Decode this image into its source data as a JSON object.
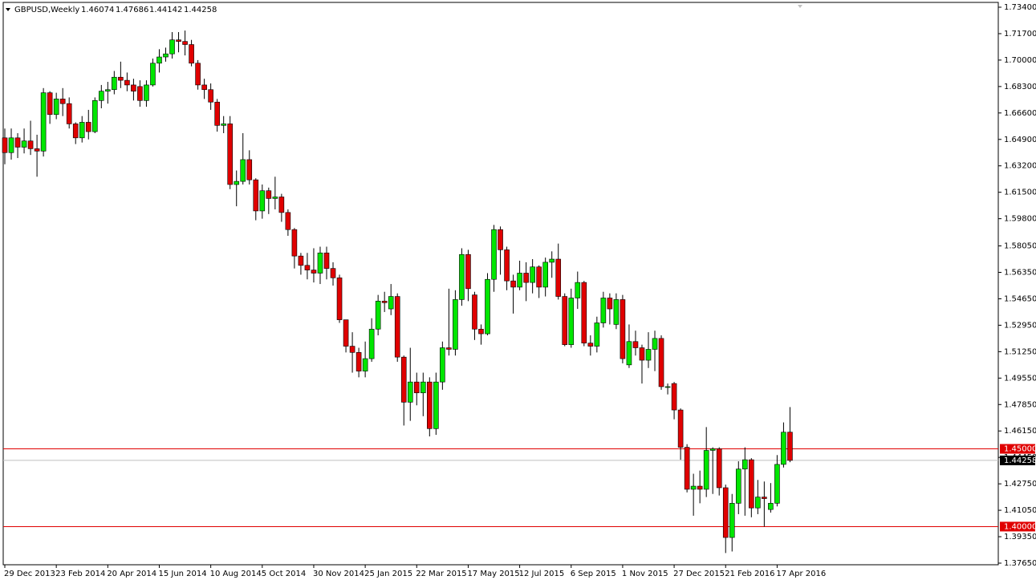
{
  "chart_data": {
    "type": "candlestick",
    "title": "GBPUSD,Weekly",
    "up_color": "#00e600",
    "down_color": "#e00000",
    "categories": [
      "29 Dec 2013",
      null,
      null,
      null,
      null,
      null,
      null,
      null,
      "23 Feb 2014",
      null,
      null,
      null,
      null,
      null,
      null,
      null,
      "20 Apr 2014",
      null,
      null,
      null,
      null,
      null,
      null,
      null,
      "15 Jun 2014",
      null,
      null,
      null,
      null,
      null,
      null,
      null,
      "10 Aug 2014",
      null,
      null,
      null,
      null,
      null,
      null,
      null,
      "5 Oct 2014",
      null,
      null,
      null,
      null,
      null,
      null,
      null,
      "30 Nov 2014",
      null,
      null,
      null,
      null,
      null,
      null,
      null,
      "25 Jan 2015",
      null,
      null,
      null,
      null,
      null,
      null,
      null,
      "22 Mar 2015",
      null,
      null,
      null,
      null,
      null,
      null,
      null,
      "17 May 2015",
      null,
      null,
      null,
      null,
      null,
      null,
      null,
      "12 Jul 2015",
      null,
      null,
      null,
      null,
      null,
      null,
      null,
      "6 Sep 2015",
      null,
      null,
      null,
      null,
      null,
      null,
      null,
      "1 Nov 2015",
      null,
      null,
      null,
      null,
      null,
      null,
      null,
      "27 Dec 2015",
      null,
      null,
      null,
      null,
      null,
      null,
      null,
      "21 Feb 2016",
      null,
      null,
      null,
      null,
      null,
      null,
      null,
      "17 Apr 2016",
      null,
      null
    ],
    "open": [
      1.65,
      1.6405,
      1.65,
      1.644,
      1.648,
      1.643,
      1.6415,
      1.679,
      1.665,
      1.675,
      1.672,
      1.659,
      1.65,
      1.66,
      1.654,
      1.674,
      1.68,
      1.681,
      1.689,
      1.687,
      1.684,
      1.683,
      1.674,
      1.684,
      1.698,
      1.702,
      1.704,
      1.713,
      1.712,
      1.71,
      1.698,
      1.684,
      1.681,
      1.673,
      1.658,
      1.659,
      1.62,
      1.622,
      1.636,
      1.623,
      1.603,
      1.616,
      1.611,
      1.612,
      1.602,
      1.591,
      1.574,
      1.568,
      1.565,
      1.563,
      1.576,
      1.566,
      1.56,
      1.533,
      1.516,
      1.512,
      1.5,
      1.508,
      1.527,
      1.545,
      1.54,
      1.548,
      1.509,
      1.48,
      1.493,
      1.486,
      1.493,
      1.463,
      1.493,
      1.515,
      1.514,
      1.546,
      1.575,
      1.549,
      1.527,
      1.524,
      1.559,
      1.591,
      1.578,
      1.558,
      1.554,
      1.563,
      1.557,
      1.567,
      1.554,
      1.57,
      1.572,
      1.548,
      1.517,
      1.547,
      1.557,
      1.518,
      1.516,
      1.531,
      1.547,
      1.53,
      1.546,
      1.504,
      1.519,
      1.515,
      1.507,
      1.514,
      1.521,
      1.49,
      1.492,
      1.475,
      1.451,
      1.424,
      1.426,
      1.424,
      1.449,
      1.45,
      1.425,
      1.393,
      1.415,
      1.437,
      1.443,
      1.412,
      1.419,
      1.411,
      1.415,
      1.44,
      1.46074
    ],
    "high": [
      1.656,
      1.656,
      1.653,
      1.656,
      1.661,
      1.652,
      1.682,
      1.68,
      1.679,
      1.682,
      1.676,
      1.66,
      1.664,
      1.668,
      1.676,
      1.684,
      1.686,
      1.693,
      1.699,
      1.692,
      1.688,
      1.687,
      1.687,
      1.701,
      1.707,
      1.708,
      1.718,
      1.718,
      1.719,
      1.713,
      1.7,
      1.688,
      1.685,
      1.675,
      1.664,
      1.664,
      1.629,
      1.653,
      1.642,
      1.624,
      1.62,
      1.618,
      1.625,
      1.614,
      1.604,
      1.592,
      1.576,
      1.576,
      1.579,
      1.58,
      1.58,
      1.57,
      1.562,
      1.533,
      1.525,
      1.515,
      1.519,
      1.534,
      1.549,
      1.551,
      1.556,
      1.55,
      1.51,
      1.515,
      1.499,
      1.499,
      1.496,
      1.499,
      1.519,
      1.553,
      1.552,
      1.579,
      1.578,
      1.551,
      1.53,
      1.563,
      1.594,
      1.593,
      1.58,
      1.562,
      1.571,
      1.57,
      1.572,
      1.568,
      1.573,
      1.577,
      1.582,
      1.55,
      1.553,
      1.564,
      1.558,
      1.523,
      1.535,
      1.551,
      1.55,
      1.55,
      1.549,
      1.53,
      1.526,
      1.517,
      1.525,
      1.526,
      1.523,
      1.492,
      1.493,
      1.476,
      1.453,
      1.434,
      1.436,
      1.464,
      1.451,
      1.451,
      1.427,
      1.421,
      1.442,
      1.451,
      1.444,
      1.43,
      1.429,
      1.428,
      1.446,
      1.467,
      1.47686
    ],
    "low": [
      1.633,
      1.636,
      1.637,
      1.64,
      1.639,
      1.625,
      1.638,
      1.659,
      1.662,
      1.664,
      1.656,
      1.646,
      1.647,
      1.649,
      1.653,
      1.669,
      1.672,
      1.678,
      1.682,
      1.68,
      1.674,
      1.67,
      1.67,
      1.683,
      1.692,
      1.699,
      1.701,
      1.705,
      1.703,
      1.696,
      1.681,
      1.675,
      1.668,
      1.654,
      1.653,
      1.617,
      1.606,
      1.62,
      1.62,
      1.597,
      1.598,
      1.601,
      1.604,
      1.596,
      1.587,
      1.566,
      1.562,
      1.559,
      1.557,
      1.556,
      1.559,
      1.555,
      1.531,
      1.512,
      1.499,
      1.496,
      1.496,
      1.506,
      1.523,
      1.538,
      1.536,
      1.506,
      1.465,
      1.468,
      1.478,
      1.471,
      1.458,
      1.459,
      1.488,
      1.51,
      1.51,
      1.542,
      1.545,
      1.52,
      1.517,
      1.523,
      1.551,
      1.562,
      1.552,
      1.537,
      1.552,
      1.545,
      1.55,
      1.547,
      1.548,
      1.56,
      1.546,
      1.516,
      1.515,
      1.54,
      1.516,
      1.51,
      1.512,
      1.528,
      1.53,
      1.527,
      1.505,
      1.502,
      1.51,
      1.492,
      1.502,
      1.5,
      1.488,
      1.485,
      1.469,
      1.443,
      1.422,
      1.407,
      1.415,
      1.419,
      1.421,
      1.42,
      1.383,
      1.384,
      1.408,
      1.407,
      1.406,
      1.408,
      1.4,
      1.409,
      1.413,
      1.438,
      1.44142
    ],
    "close": [
      1.6405,
      1.65,
      1.644,
      1.648,
      1.643,
      1.6415,
      1.679,
      1.665,
      1.675,
      1.672,
      1.659,
      1.65,
      1.66,
      1.654,
      1.674,
      1.68,
      1.681,
      1.689,
      1.687,
      1.684,
      1.68,
      1.674,
      1.684,
      1.698,
      1.702,
      1.704,
      1.713,
      1.712,
      1.71,
      1.698,
      1.684,
      1.681,
      1.673,
      1.658,
      1.659,
      1.62,
      1.622,
      1.636,
      1.623,
      1.603,
      1.616,
      1.611,
      1.612,
      1.602,
      1.591,
      1.574,
      1.568,
      1.565,
      1.563,
      1.576,
      1.566,
      1.56,
      1.533,
      1.516,
      1.512,
      1.5,
      1.508,
      1.527,
      1.545,
      1.544,
      1.548,
      1.509,
      1.48,
      1.493,
      1.486,
      1.493,
      1.463,
      1.493,
      1.515,
      1.514,
      1.546,
      1.575,
      1.553,
      1.527,
      1.524,
      1.559,
      1.591,
      1.578,
      1.558,
      1.554,
      1.563,
      1.557,
      1.567,
      1.554,
      1.57,
      1.572,
      1.548,
      1.517,
      1.547,
      1.557,
      1.518,
      1.516,
      1.531,
      1.547,
      1.54,
      1.546,
      1.508,
      1.519,
      1.515,
      1.507,
      1.514,
      1.521,
      1.49,
      1.49,
      1.475,
      1.451,
      1.424,
      1.426,
      1.424,
      1.449,
      1.45,
      1.425,
      1.393,
      1.415,
      1.437,
      1.443,
      1.412,
      1.419,
      1.418,
      1.415,
      1.44,
      1.4607,
      1.44258
    ],
    "ylim": [
      1.3765,
      1.734
    ],
    "yticks": [
      {
        "value": 1.734,
        "label": "1.73400"
      },
      {
        "value": 1.717,
        "label": "1.71700"
      },
      {
        "value": 1.7,
        "label": "1.70000"
      },
      {
        "value": 1.683,
        "label": "1.68300"
      },
      {
        "value": 1.666,
        "label": "1.66600"
      },
      {
        "value": 1.649,
        "label": "1.64900"
      },
      {
        "value": 1.632,
        "label": "1.63200"
      },
      {
        "value": 1.615,
        "label": "1.61500"
      },
      {
        "value": 1.598,
        "label": "1.59800"
      },
      {
        "value": 1.5805,
        "label": "1.58050"
      },
      {
        "value": 1.5635,
        "label": "1.56350"
      },
      {
        "value": 1.5465,
        "label": "1.54650"
      },
      {
        "value": 1.5295,
        "label": "1.52950"
      },
      {
        "value": 1.5125,
        "label": "1.51250"
      },
      {
        "value": 1.4955,
        "label": "1.49550"
      },
      {
        "value": 1.4785,
        "label": "1.47850"
      },
      {
        "value": 1.4615,
        "label": "1.46150"
      },
      {
        "value": 1.4445,
        "label": "1.44450"
      },
      {
        "value": 1.4275,
        "label": "1.42750"
      },
      {
        "value": 1.4105,
        "label": "1.41050"
      },
      {
        "value": 1.3935,
        "label": "1.39350"
      },
      {
        "value": 1.3765,
        "label": "1.37650"
      }
    ],
    "hlines": [
      {
        "value": 1.45,
        "label": "1.45000",
        "color": "#e00000"
      },
      {
        "value": 1.4,
        "label": "1.40000",
        "color": "#e00000"
      }
    ],
    "price_line_color": "#c0c0c0",
    "grid": false
  }
}
